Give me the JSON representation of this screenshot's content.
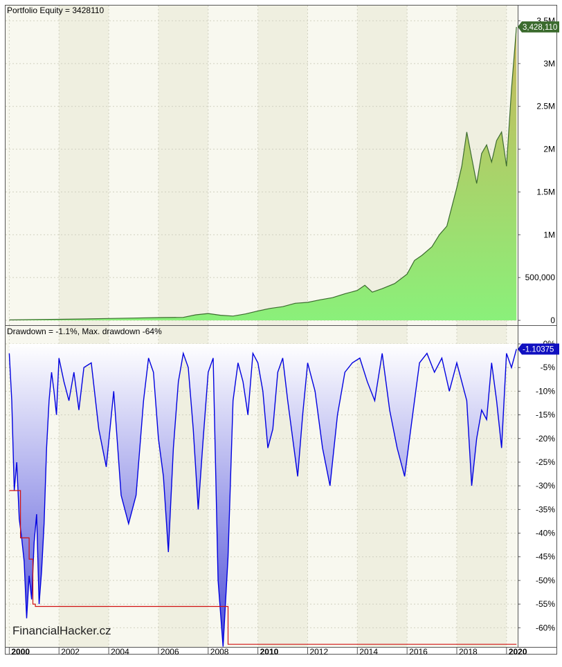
{
  "colors": {
    "band_light": "#f8f8ef",
    "band_dark": "#efefe0",
    "grid": "#cfcfbf",
    "equity_line": "#3b6b2e",
    "equity_fill_top": "#c8b65a",
    "equity_fill_bottom": "#8af07a",
    "drawdown_line": "#0000e0",
    "drawdown_fill_top": "#ffffff",
    "drawdown_fill_bottom": "#4c4cd8",
    "maxdd_line": "#d01010",
    "equity_badge": "#3b6b2e",
    "drawdown_badge": "#1010c0"
  },
  "watermark": "FinancialHacker.cz",
  "x_axis": {
    "ticks": [
      "2000",
      "2002",
      "2004",
      "2006",
      "2008",
      "2010",
      "2012",
      "2014",
      "2016",
      "2018",
      "2020"
    ],
    "bold": [
      "2000",
      "2010",
      "2020"
    ]
  },
  "chart_data": [
    {
      "type": "area",
      "title": "Portfolio Equity = 3428110",
      "last_value_label": "3,428,110",
      "ylim": [
        0,
        3500000
      ],
      "y_ticks": [
        0,
        500000,
        1000000,
        1500000,
        2000000,
        2500000,
        3000000,
        3500000
      ],
      "y_tick_labels": [
        "0",
        "500,000",
        "1M",
        "1.5M",
        "2M",
        "2.5M",
        "3M",
        "3.5M"
      ],
      "series": [
        {
          "x": [
            2000.0,
            2001.0,
            2002.0,
            2003.0,
            2004.0,
            2005.0,
            2006.0,
            2007.0,
            2007.5,
            2008.0,
            2008.5,
            2009.0,
            2009.5,
            2010.0,
            2010.5,
            2011.0,
            2011.5,
            2012.0,
            2012.5,
            2013.0,
            2013.5,
            2014.0,
            2014.3,
            2014.6,
            2015.0,
            2015.5,
            2016.0,
            2016.3,
            2016.6,
            2017.0,
            2017.3,
            2017.6,
            2018.0,
            2018.2,
            2018.4,
            2018.6,
            2018.8,
            2019.0,
            2019.2,
            2019.4,
            2019.6,
            2019.8,
            2020.0,
            2020.2,
            2020.4
          ],
          "values": [
            5000,
            10000,
            12000,
            16000,
            22000,
            27000,
            32000,
            35000,
            65000,
            80000,
            60000,
            50000,
            75000,
            110000,
            140000,
            160000,
            200000,
            210000,
            240000,
            265000,
            310000,
            350000,
            410000,
            330000,
            370000,
            430000,
            540000,
            700000,
            760000,
            860000,
            1000000,
            1100000,
            1550000,
            1800000,
            2200000,
            1900000,
            1600000,
            1950000,
            2050000,
            1850000,
            2100000,
            2200000,
            1800000,
            2700000,
            3428110
          ]
        }
      ]
    },
    {
      "type": "area",
      "title": "Drawdown = -1.1%, Max. drawdown -64%",
      "last_value_label": "-1.10375",
      "ylim": [
        -68,
        0
      ],
      "y_ticks": [
        0,
        -5,
        -10,
        -15,
        -20,
        -25,
        -30,
        -35,
        -40,
        -45,
        -50,
        -55,
        -60
      ],
      "y_tick_labels": [
        "0%",
        "-5%",
        "-10%",
        "-15%",
        "-20%",
        "-25%",
        "-30%",
        "-35%",
        "-40%",
        "-45%",
        "-50%",
        "-55%",
        "-60%"
      ],
      "series": [
        {
          "name": "Drawdown",
          "x": [
            2000.0,
            2000.1,
            2000.2,
            2000.3,
            2000.4,
            2000.5,
            2000.6,
            2000.7,
            2000.8,
            2000.9,
            2001.0,
            2001.1,
            2001.2,
            2001.3,
            2001.4,
            2001.5,
            2001.6,
            2001.7,
            2001.8,
            2001.9,
            2002.0,
            2002.2,
            2002.4,
            2002.6,
            2002.8,
            2003.0,
            2003.3,
            2003.6,
            2003.9,
            2004.2,
            2004.5,
            2004.8,
            2005.1,
            2005.4,
            2005.6,
            2005.8,
            2006.0,
            2006.2,
            2006.4,
            2006.6,
            2006.8,
            2007.0,
            2007.2,
            2007.4,
            2007.6,
            2007.8,
            2008.0,
            2008.2,
            2008.4,
            2008.6,
            2008.8,
            2009.0,
            2009.2,
            2009.4,
            2009.6,
            2009.8,
            2010.0,
            2010.2,
            2010.4,
            2010.6,
            2010.8,
            2011.0,
            2011.2,
            2011.4,
            2011.6,
            2011.8,
            2012.0,
            2012.3,
            2012.6,
            2012.9,
            2013.2,
            2013.5,
            2013.8,
            2014.1,
            2014.4,
            2014.7,
            2015.0,
            2015.3,
            2015.6,
            2015.9,
            2016.2,
            2016.5,
            2016.8,
            2017.1,
            2017.4,
            2017.7,
            2018.0,
            2018.2,
            2018.4,
            2018.6,
            2018.8,
            2019.0,
            2019.2,
            2019.4,
            2019.6,
            2019.8,
            2020.0,
            2020.2,
            2020.4
          ],
          "values": [
            -2,
            -12,
            -31,
            -25,
            -37,
            -41,
            -46,
            -58,
            -49,
            -54,
            -42,
            -36,
            -55,
            -48,
            -38,
            -22,
            -12,
            -6,
            -10,
            -15,
            -3,
            -8,
            -12,
            -6,
            -14,
            -5,
            -4,
            -18,
            -26,
            -10,
            -32,
            -38,
            -32,
            -12,
            -3,
            -6,
            -20,
            -28,
            -44,
            -22,
            -8,
            -2,
            -5,
            -18,
            -35,
            -20,
            -6,
            -3,
            -50,
            -64,
            -45,
            -12,
            -4,
            -8,
            -15,
            -2,
            -4,
            -10,
            -22,
            -18,
            -6,
            -3,
            -12,
            -20,
            -28,
            -15,
            -4,
            -10,
            -22,
            -30,
            -15,
            -6,
            -4,
            -3,
            -8,
            -12,
            -2,
            -14,
            -22,
            -28,
            -16,
            -4,
            -2,
            -6,
            -3,
            -10,
            -4,
            -8,
            -12,
            -30,
            -20,
            -14,
            -16,
            -4,
            -12,
            -22,
            -2,
            -5,
            -1.1
          ]
        },
        {
          "name": "Max drawdown",
          "x": [
            2000.0,
            2000.45,
            2000.45,
            2000.8,
            2000.8,
            2000.95,
            2000.95,
            2001.05,
            2001.05,
            2008.8,
            2008.8,
            2020.4
          ],
          "values": [
            -31,
            -31,
            -41,
            -41,
            -45.5,
            -45.5,
            -55,
            -55,
            -55.5,
            -55.5,
            -63.5,
            -63.5
          ]
        }
      ]
    }
  ]
}
